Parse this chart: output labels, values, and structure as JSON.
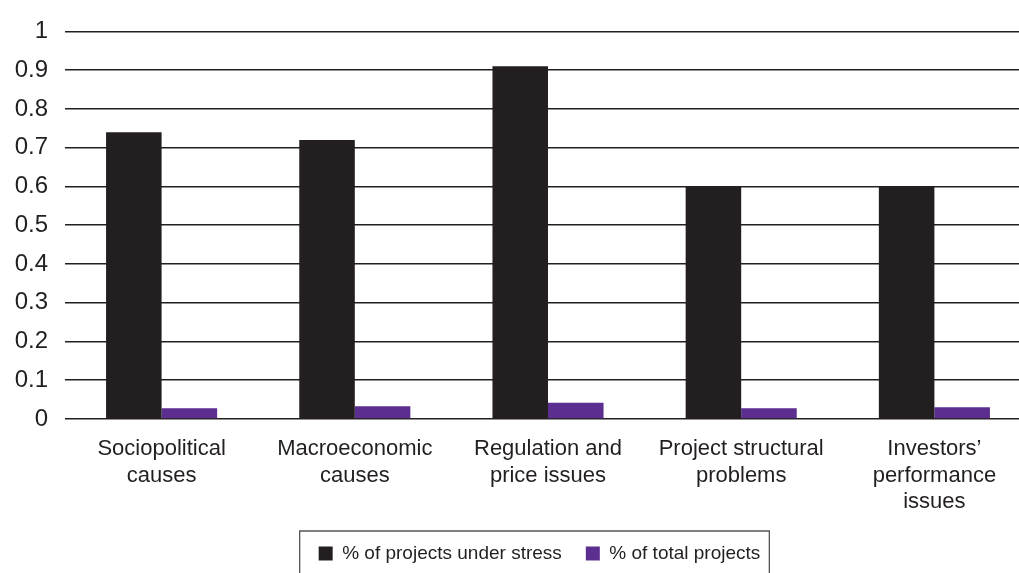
{
  "chart_data": {
    "type": "bar",
    "categories": [
      "Sociopolitical causes",
      "Macroeconomic causes",
      "Regulation and price issues",
      "Project structural problems",
      "Investors’ performance issues"
    ],
    "series": [
      {
        "name": "% of projects under stress",
        "color": "#231f20",
        "values": [
          0.74,
          0.72,
          0.91,
          0.6,
          0.6
        ]
      },
      {
        "name": "% of total projects",
        "color": "#5b2e8f",
        "values": [
          0.028,
          0.033,
          0.042,
          0.028,
          0.03
        ]
      }
    ],
    "ylim": [
      0,
      1
    ],
    "yticks": [
      0,
      0.1,
      0.2,
      0.3,
      0.4,
      0.5,
      0.6,
      0.7,
      0.8,
      0.9,
      1
    ],
    "grid": "y",
    "legend": "bottom"
  }
}
